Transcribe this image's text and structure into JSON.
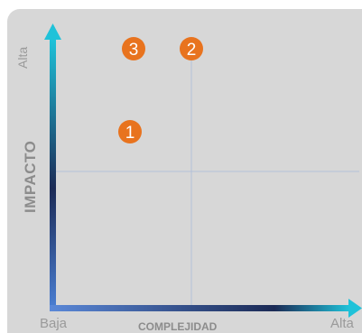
{
  "axes": {
    "y_high": "Alta",
    "y_title": "IMPACTO",
    "x_low": "Baja",
    "x_title": "COMPLEJIDAD",
    "x_high": "Alta"
  },
  "markers": [
    {
      "label": "3"
    },
    {
      "label": "2"
    },
    {
      "label": "1"
    }
  ],
  "colors": {
    "panel": "#d7d7d7",
    "marker": "#e8731e",
    "axis_start": "#1fb6d6",
    "axis_dark": "#1b2a55"
  }
}
